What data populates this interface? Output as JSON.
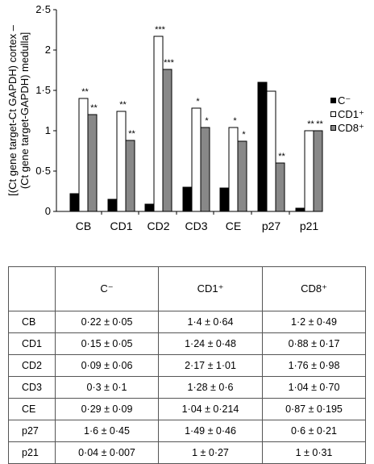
{
  "chart_data": {
    "type": "bar",
    "categories": [
      "CB",
      "CD1",
      "CD2",
      "CD3",
      "CE",
      "p27",
      "p21"
    ],
    "ylabel_line1": "[(Ct gene target-Ct GAPDH) cortex –",
    "ylabel_line2": "(Ct gene target-GAPDH) medulla]",
    "ylim": [
      0,
      2.5
    ],
    "yticks": [
      "0",
      "0·5",
      "1",
      "1·5",
      "2",
      "2·5"
    ],
    "legend_position": "right",
    "series": [
      {
        "name": "C⁻",
        "color": "#000000",
        "values": [
          0.22,
          0.15,
          0.09,
          0.3,
          0.29,
          1.6,
          0.04
        ],
        "sig": [
          "",
          "",
          "",
          "",
          "",
          "",
          ""
        ]
      },
      {
        "name": "CD1⁺",
        "color": "#ffffff",
        "values": [
          1.4,
          1.24,
          2.17,
          1.28,
          1.04,
          1.49,
          1
        ],
        "sig": [
          "**",
          "**",
          "***",
          "*",
          "*",
          "",
          "**"
        ]
      },
      {
        "name": "CD8⁺",
        "color": "#888888",
        "values": [
          1.2,
          0.88,
          1.76,
          1.04,
          0.87,
          0.6,
          1
        ],
        "sig": [
          "**",
          "**",
          "***",
          "*",
          "*",
          "**",
          "**"
        ]
      }
    ]
  },
  "table": {
    "headers": [
      "",
      "C⁻",
      "CD1⁺",
      "CD8⁺"
    ],
    "rows": [
      [
        "CB",
        "0·22 ± 0·05",
        "1·4 ± 0·64",
        "1·2 ± 0·49"
      ],
      [
        "CD1",
        "0·15 ± 0·05",
        "1·24 ± 0·48",
        "0·88 ± 0·17"
      ],
      [
        "CD2",
        "0·09 ± 0·06",
        "2·17 ± 1·01",
        "1·76 ± 0·98"
      ],
      [
        "CD3",
        "0·3 ± 0·1",
        "1·28 ± 0·6",
        "1·04 ± 0·70"
      ],
      [
        "CE",
        "0·29 ± 0·09",
        "1·04 ± 0·214",
        "0·87 ± 0·195"
      ],
      [
        "p27",
        "1·6 ± 0·45",
        "1·49 ± 0·46",
        "0·6 ± 0·21"
      ],
      [
        "p21",
        "0·04 ± 0·007",
        "1 ± 0·27",
        "1 ± 0·31"
      ]
    ]
  }
}
